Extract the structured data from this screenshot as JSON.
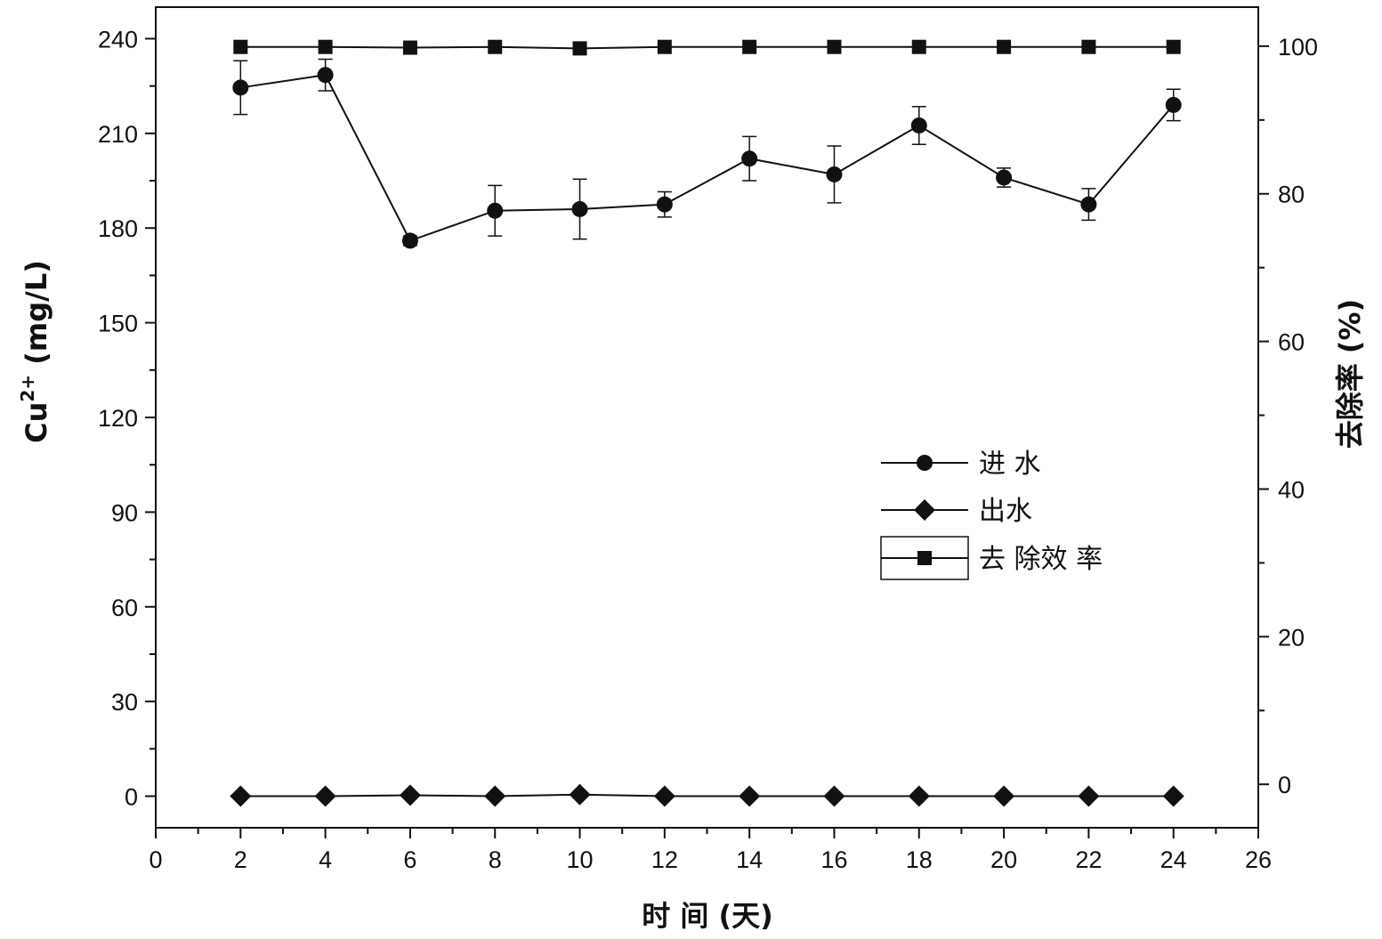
{
  "chart_data": {
    "type": "line",
    "x": [
      2,
      4,
      6,
      8,
      10,
      12,
      14,
      16,
      18,
      20,
      22,
      24
    ],
    "xlabel": "时 间 (天)",
    "xlim": [
      0,
      26
    ],
    "xticks": [
      "0",
      "2",
      "4",
      "6",
      "8",
      "10",
      "12",
      "14",
      "16",
      "18",
      "20",
      "22",
      "24",
      "26"
    ],
    "ylabel_base": "Cu",
    "ylabel_sup": "2+",
    "ylabel_unit": " (mg/L)",
    "ylim": [
      -10,
      250
    ],
    "yticks": [
      "0",
      "30",
      "60",
      "90",
      "120",
      "150",
      "180",
      "210",
      "240"
    ],
    "y2label": "去除率 (%)",
    "y2lim": [
      -5.88,
      105.29
    ],
    "y2ticks": [
      "0",
      "20",
      "40",
      "60",
      "80",
      "100"
    ],
    "grid": false,
    "legend_position": "center-right",
    "series": [
      {
        "name": "进 水",
        "axis": "left",
        "marker": "circle",
        "values": [
          224.5,
          228.5,
          176,
          185.5,
          186,
          187.5,
          202,
          197,
          212.5,
          196,
          187.5,
          219
        ],
        "errors": [
          8.5,
          5,
          1.5,
          8,
          9.5,
          4,
          7,
          9,
          6,
          3,
          5,
          5
        ]
      },
      {
        "name": "出水",
        "axis": "left",
        "marker": "diamond",
        "values": [
          0,
          0,
          0.3,
          0,
          0.5,
          0,
          0,
          0,
          0,
          0,
          0,
          0
        ]
      },
      {
        "name": "去 除效 率",
        "axis": "right",
        "marker": "square",
        "values": [
          99.9,
          99.9,
          99.8,
          99.9,
          99.7,
          99.9,
          99.9,
          99.9,
          99.9,
          99.9,
          99.9,
          99.9
        ]
      }
    ]
  }
}
